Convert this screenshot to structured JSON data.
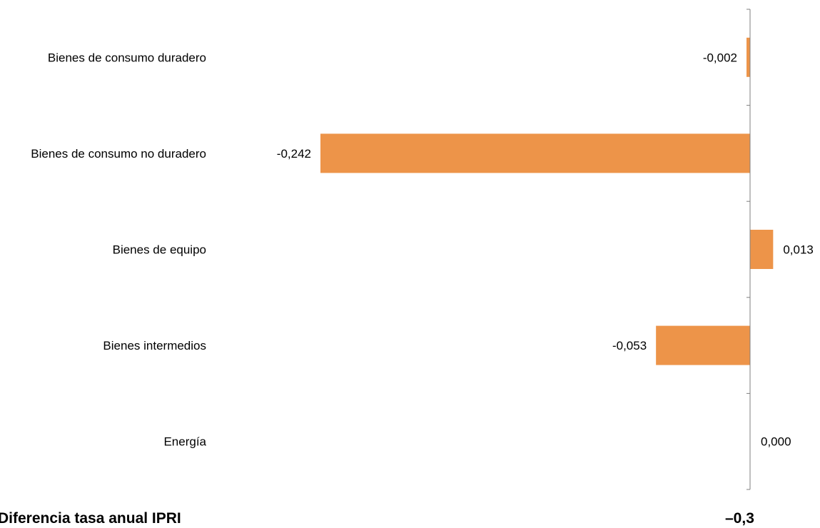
{
  "chart_data": {
    "type": "bar",
    "orientation": "horizontal",
    "categories": [
      "Bienes de consumo duradero",
      "Bienes de consumo no duradero",
      "Bienes de equipo",
      "Bienes intermedios",
      "Energía"
    ],
    "values": [
      -0.002,
      -0.242,
      0.013,
      -0.053,
      0.0
    ],
    "value_labels": [
      "-0,002",
      "-0,242",
      "0,013",
      "-0,053",
      "0,000"
    ],
    "bar_color": "#ED9449",
    "axis_color": "#7F7F7F",
    "grid": false,
    "legend": "none"
  },
  "footer": {
    "label": "Diferencia tasa anual IPRI",
    "value": "–0,3"
  }
}
